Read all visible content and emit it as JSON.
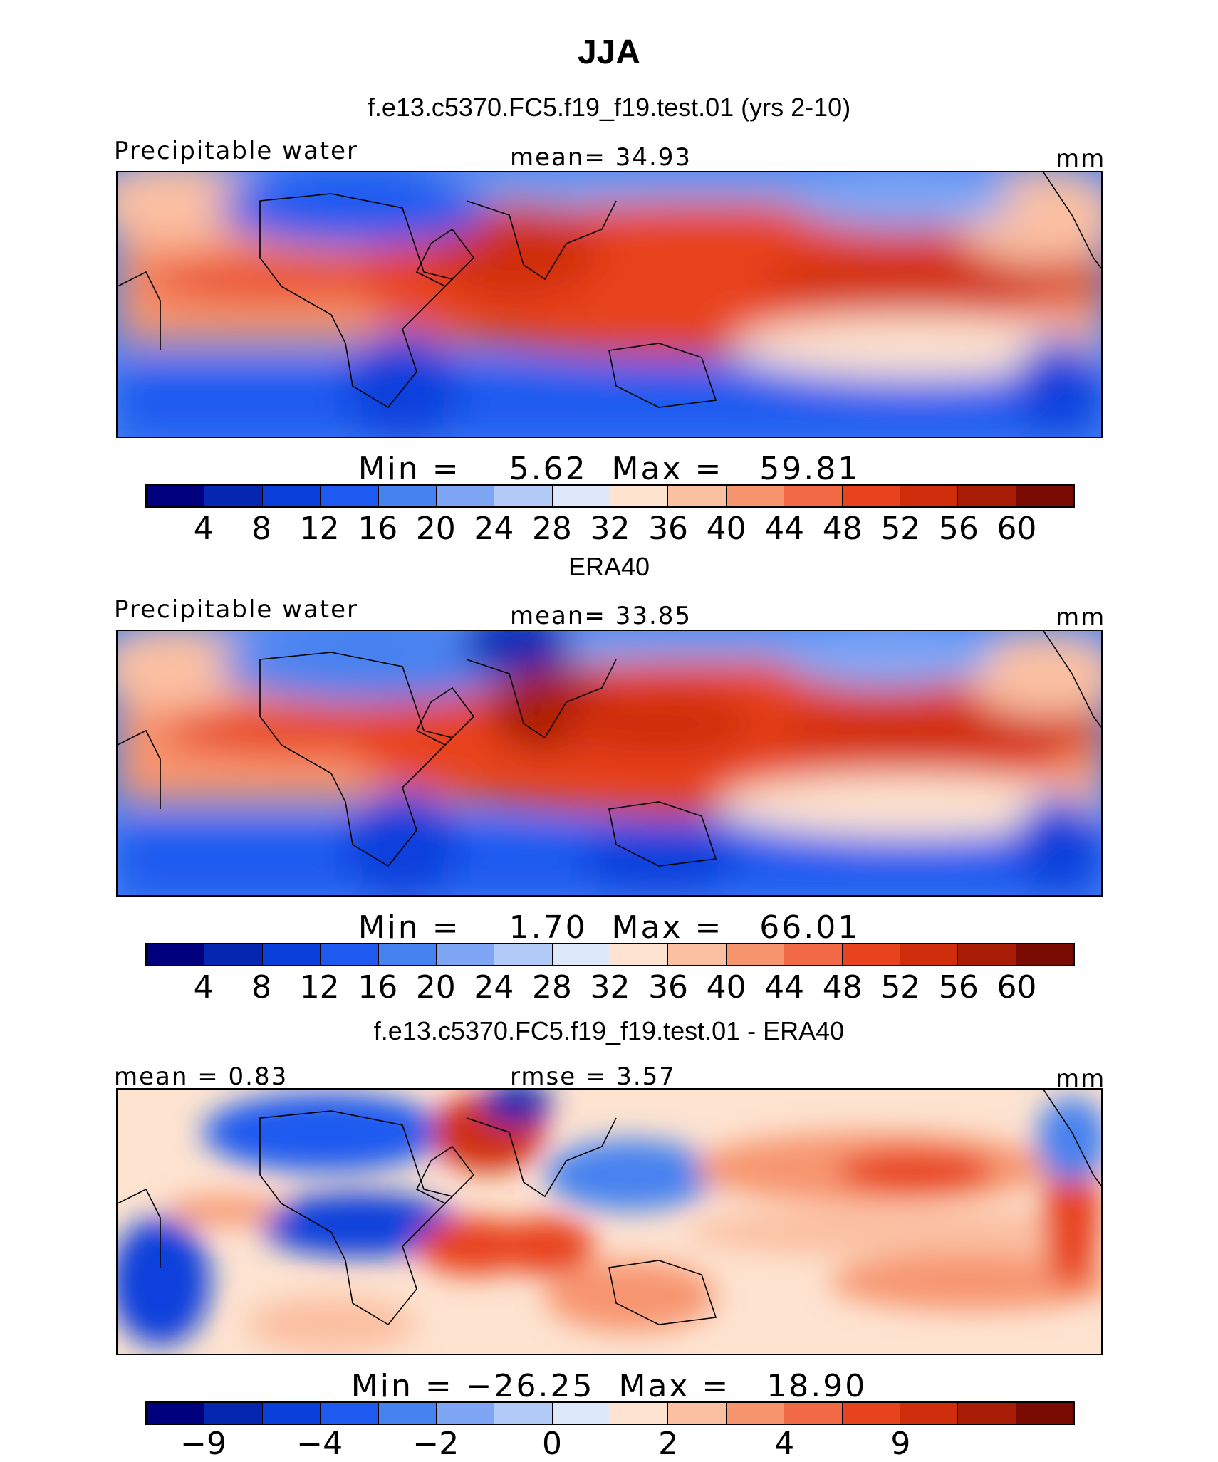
{
  "figure": {
    "title": "JJA",
    "panels": [
      {
        "id": "model",
        "subtitle": "f.e13.c5370.FC5.f19_f19.test.01 (yrs 2-10)",
        "left_label": "Precipitable water",
        "center_label": "mean=   34.93",
        "right_label": "mm",
        "minmax": "Min =    5.62  Max =   59.81",
        "colorbar_ticks": [
          "4",
          "8",
          "12",
          "16",
          "20",
          "24",
          "28",
          "32",
          "36",
          "40",
          "44",
          "48",
          "52",
          "56",
          "60"
        ]
      },
      {
        "id": "obs",
        "subtitle": "ERA40",
        "left_label": "Precipitable water",
        "center_label": "mean=   33.85",
        "right_label": "mm",
        "minmax": "Min =    1.70  Max =   66.01",
        "colorbar_ticks": [
          "4",
          "8",
          "12",
          "16",
          "20",
          "24",
          "28",
          "32",
          "36",
          "40",
          "44",
          "48",
          "52",
          "56",
          "60"
        ]
      },
      {
        "id": "diff",
        "subtitle": "f.e13.c5370.FC5.f19_f19.test.01 - ERA40",
        "left_label": "mean =    0.83",
        "center_label": "rmse =    3.57",
        "right_label": "mm",
        "minmax": "Min = −26.25  Max =   18.90",
        "colorbar_ticks": [
          "−9",
          "",
          "−4",
          "",
          "−2",
          "",
          "0",
          "",
          "2",
          "",
          "4",
          "",
          "9",
          ""
        ]
      }
    ],
    "colorbar_colors": [
      "#00007f",
      "#0526b0",
      "#0a3fdc",
      "#1e5af0",
      "#4682f0",
      "#7ea6f5",
      "#b1caf8",
      "#dde9fb",
      "#fde3d0",
      "#fbc0a2",
      "#f7956f",
      "#f26a45",
      "#e8431f",
      "#d02d0c",
      "#a81c06",
      "#7a0b02"
    ]
  }
}
